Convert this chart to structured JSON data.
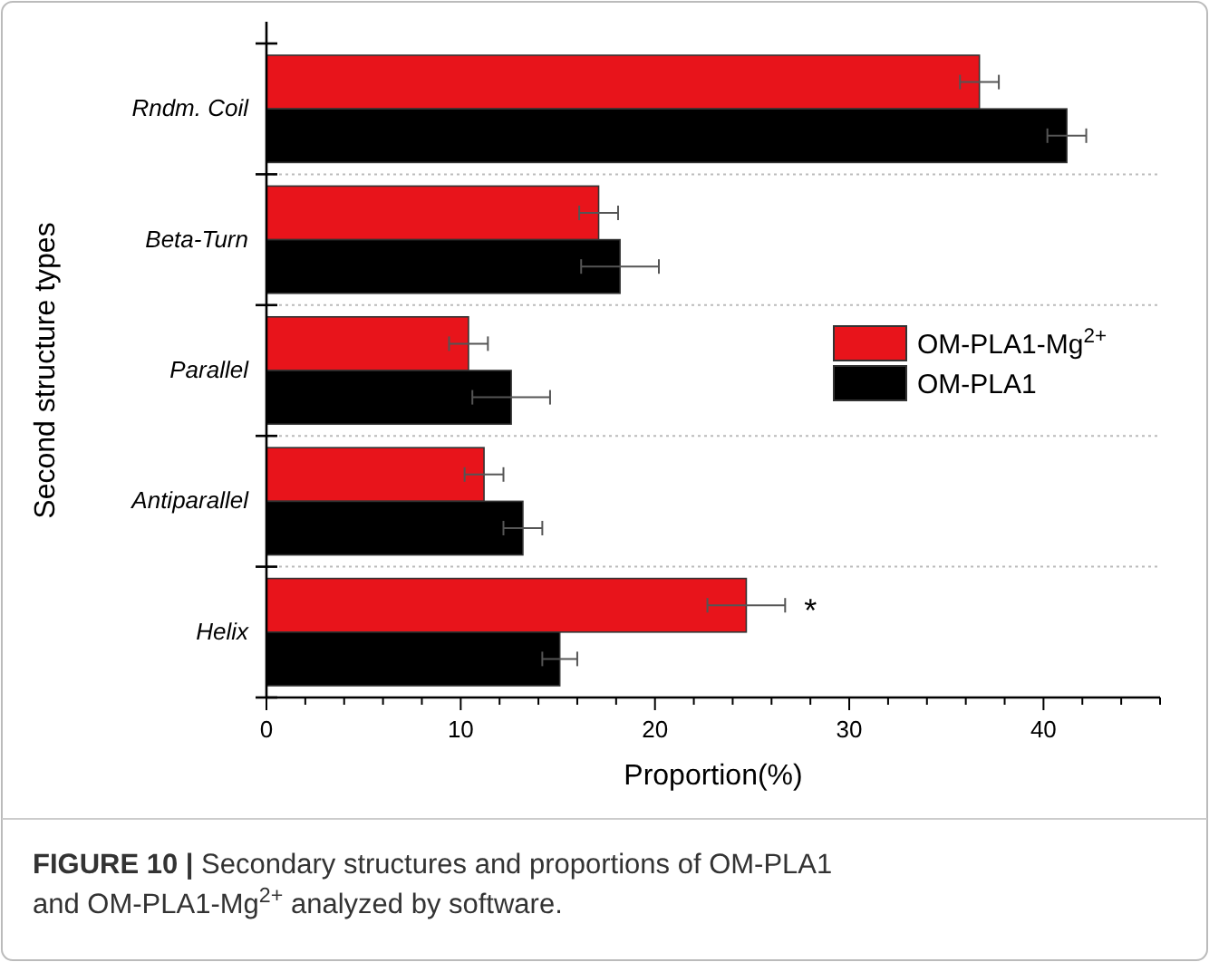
{
  "chart_data": {
    "type": "bar",
    "orientation": "horizontal",
    "xlabel": "Proportion(%)",
    "ylabel": "Second structure types",
    "categories": [
      "Rndm. Coil",
      "Beta-Turn",
      "Parallel",
      "Antiparallel",
      "Helix"
    ],
    "series": [
      {
        "name": "OM-PLA1-Mg$^{2+}$",
        "color": "#e8141b",
        "values": [
          36.7,
          17.1,
          10.4,
          11.2,
          24.7
        ],
        "errors": [
          1.0,
          1.0,
          1.0,
          1.0,
          2.0
        ]
      },
      {
        "name": "OM-PLA1",
        "color": "#000000",
        "values": [
          41.2,
          18.2,
          12.6,
          13.2,
          15.1
        ],
        "errors": [
          1.0,
          2.0,
          2.0,
          1.0,
          0.9
        ]
      }
    ],
    "xlim": [
      0,
      46
    ],
    "xticks": [
      0,
      {
        "value": 2,
        "label": null
      },
      {
        "value": 4,
        "label": null
      },
      {
        "value": 6,
        "label": null
      },
      {
        "value": 8,
        "label": null
      },
      10,
      {
        "value": 12,
        "label": null
      },
      {
        "value": 14,
        "label": null
      },
      {
        "value": 16,
        "label": null
      },
      {
        "value": 18,
        "label": null
      },
      20,
      {
        "value": 22,
        "label": null
      },
      {
        "value": 24,
        "label": null
      },
      {
        "value": 26,
        "label": null
      },
      {
        "value": 28,
        "label": null
      },
      30,
      {
        "value": 32,
        "label": null
      },
      {
        "value": 34,
        "label": null
      },
      {
        "value": 36,
        "label": null
      },
      {
        "value": 38,
        "label": null
      },
      40,
      {
        "value": 42,
        "label": null
      },
      {
        "value": 44,
        "label": null
      }
    ],
    "grid": "y",
    "legend": "right",
    "annotations": [
      "*",
      "FIGURE 10 | Secondary structures and proportions of OM-PLA1 and OM-PLA1-Mg$^{2+}$ analyzed by software."
    ]
  }
}
